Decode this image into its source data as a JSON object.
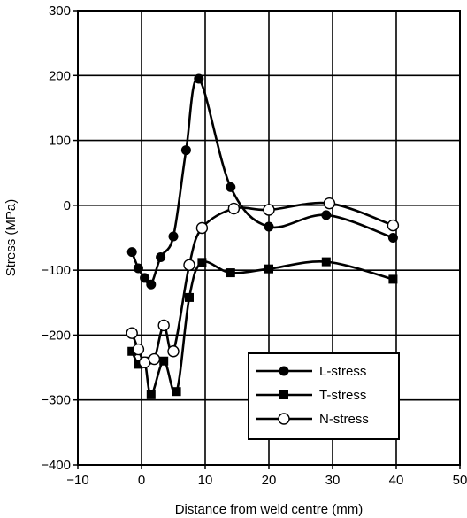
{
  "chart_data": {
    "type": "line",
    "title": "",
    "xlabel": "Distance from weld centre (mm)",
    "ylabel": "Stress (MPa)",
    "xlim": [
      -10,
      50
    ],
    "ylim": [
      -400,
      300
    ],
    "xticks": [
      -10,
      0,
      10,
      20,
      30,
      40,
      50
    ],
    "yticks": [
      -400,
      -300,
      -200,
      -100,
      0,
      100,
      200,
      300
    ],
    "xtick_labels": [
      "−10",
      "0",
      "10",
      "20",
      "30",
      "40",
      "50"
    ],
    "ytick_labels": [
      "−400",
      "−300",
      "−200",
      "−100",
      "0",
      "100",
      "200",
      "300"
    ],
    "grid": true,
    "legend_position": "bottom-right",
    "series": [
      {
        "name": "L-stress",
        "marker": "filled-circle",
        "color": "#000000",
        "x": [
          -1.5,
          -0.5,
          0.5,
          1.5,
          3,
          5,
          7,
          9,
          14,
          20,
          29,
          39.5
        ],
        "y": [
          -72,
          -97,
          -112,
          -122,
          -80,
          -48,
          85,
          195,
          28,
          -33,
          -15,
          -50
        ]
      },
      {
        "name": "T-stress",
        "marker": "filled-square",
        "color": "#000000",
        "x": [
          -1.5,
          -0.5,
          0.5,
          1.5,
          3.5,
          5.5,
          7.5,
          9.5,
          14,
          20,
          29,
          39.5
        ],
        "y": [
          -225,
          -245,
          -240,
          -292,
          -240,
          -287,
          -142,
          -88,
          -104,
          -98,
          -87,
          -114
        ]
      },
      {
        "name": "N-stress",
        "marker": "open-circle",
        "color": "#000000",
        "x": [
          -1.5,
          -0.5,
          0.5,
          2,
          3.5,
          5,
          7.5,
          9.5,
          14.5,
          20,
          29.5,
          39.5
        ],
        "y": [
          -197,
          -222,
          -242,
          -237,
          -185,
          -225,
          -92,
          -35,
          -5,
          -7,
          3,
          -31
        ]
      }
    ]
  }
}
